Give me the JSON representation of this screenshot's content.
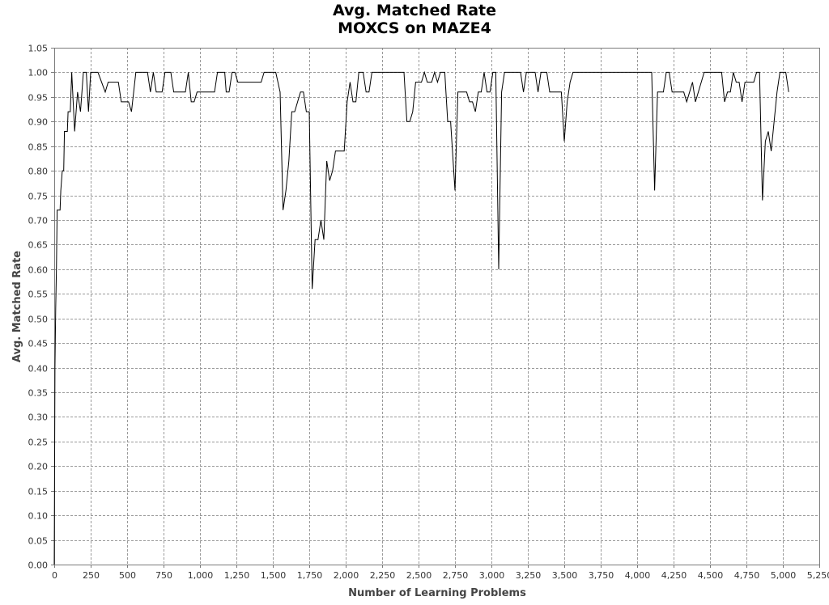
{
  "chart_data": {
    "type": "line",
    "title": "Avg. Matched Rate",
    "subtitle": "MOXCS on MAZE4",
    "xlabel": "Number of Learning Problems",
    "ylabel": "Avg. Matched Rate",
    "xlim": [
      0,
      5250
    ],
    "ylim": [
      0,
      1.05
    ],
    "grid": true,
    "x_ticks": [
      "0",
      "250",
      "500",
      "750",
      "1,000",
      "1,250",
      "1,500",
      "1,750",
      "2,000",
      "2,250",
      "2,500",
      "2,750",
      "3,000",
      "3,250",
      "3,500",
      "3,750",
      "4,000",
      "4,250",
      "4,500",
      "4,750",
      "5,000",
      "5,250"
    ],
    "y_ticks": [
      "0.00",
      "0.05",
      "0.10",
      "0.15",
      "0.20",
      "0.25",
      "0.30",
      "0.35",
      "0.40",
      "0.45",
      "0.50",
      "0.55",
      "0.60",
      "0.65",
      "0.70",
      "0.75",
      "0.80",
      "0.85",
      "0.90",
      "0.95",
      "1.00",
      "1.05"
    ],
    "series": [
      {
        "color": "#000000",
        "points": [
          [
            0,
            0.0
          ],
          [
            5,
            0.4
          ],
          [
            10,
            0.52
          ],
          [
            15,
            0.6
          ],
          [
            20,
            0.72
          ],
          [
            40,
            0.72
          ],
          [
            45,
            0.76
          ],
          [
            55,
            0.8
          ],
          [
            65,
            0.8
          ],
          [
            70,
            0.88
          ],
          [
            90,
            0.88
          ],
          [
            95,
            0.92
          ],
          [
            110,
            0.92
          ],
          [
            120,
            1.0
          ],
          [
            140,
            0.88
          ],
          [
            160,
            0.96
          ],
          [
            180,
            0.92
          ],
          [
            200,
            1.0
          ],
          [
            220,
            1.0
          ],
          [
            235,
            0.92
          ],
          [
            250,
            1.0
          ],
          [
            300,
            1.0
          ],
          [
            350,
            0.96
          ],
          [
            370,
            0.98
          ],
          [
            440,
            0.98
          ],
          [
            460,
            0.94
          ],
          [
            510,
            0.94
          ],
          [
            530,
            0.92
          ],
          [
            560,
            1.0
          ],
          [
            640,
            1.0
          ],
          [
            660,
            0.96
          ],
          [
            680,
            1.0
          ],
          [
            700,
            0.96
          ],
          [
            740,
            0.96
          ],
          [
            760,
            1.0
          ],
          [
            800,
            1.0
          ],
          [
            820,
            0.96
          ],
          [
            900,
            0.96
          ],
          [
            920,
            1.0
          ],
          [
            940,
            0.94
          ],
          [
            960,
            0.94
          ],
          [
            980,
            0.96
          ],
          [
            1100,
            0.96
          ],
          [
            1120,
            1.0
          ],
          [
            1170,
            1.0
          ],
          [
            1180,
            0.96
          ],
          [
            1200,
            0.96
          ],
          [
            1220,
            1.0
          ],
          [
            1240,
            1.0
          ],
          [
            1260,
            0.98
          ],
          [
            1420,
            0.98
          ],
          [
            1440,
            1.0
          ],
          [
            1520,
            1.0
          ],
          [
            1550,
            0.96
          ],
          [
            1570,
            0.72
          ],
          [
            1590,
            0.76
          ],
          [
            1610,
            0.82
          ],
          [
            1630,
            0.92
          ],
          [
            1650,
            0.92
          ],
          [
            1670,
            0.94
          ],
          [
            1690,
            0.96
          ],
          [
            1710,
            0.96
          ],
          [
            1730,
            0.92
          ],
          [
            1750,
            0.92
          ],
          [
            1770,
            0.56
          ],
          [
            1790,
            0.66
          ],
          [
            1810,
            0.66
          ],
          [
            1830,
            0.7
          ],
          [
            1850,
            0.66
          ],
          [
            1870,
            0.82
          ],
          [
            1890,
            0.78
          ],
          [
            1910,
            0.8
          ],
          [
            1930,
            0.84
          ],
          [
            1990,
            0.84
          ],
          [
            2010,
            0.94
          ],
          [
            2030,
            0.98
          ],
          [
            2050,
            0.94
          ],
          [
            2070,
            0.94
          ],
          [
            2090,
            1.0
          ],
          [
            2120,
            1.0
          ],
          [
            2140,
            0.96
          ],
          [
            2160,
            0.96
          ],
          [
            2180,
            1.0
          ],
          [
            2400,
            1.0
          ],
          [
            2420,
            0.9
          ],
          [
            2440,
            0.9
          ],
          [
            2460,
            0.92
          ],
          [
            2480,
            0.98
          ],
          [
            2520,
            0.98
          ],
          [
            2540,
            1.0
          ],
          [
            2560,
            0.98
          ],
          [
            2590,
            0.98
          ],
          [
            2610,
            1.0
          ],
          [
            2630,
            0.98
          ],
          [
            2650,
            1.0
          ],
          [
            2680,
            1.0
          ],
          [
            2700,
            0.9
          ],
          [
            2720,
            0.9
          ],
          [
            2750,
            0.76
          ],
          [
            2770,
            0.96
          ],
          [
            2830,
            0.96
          ],
          [
            2850,
            0.94
          ],
          [
            2870,
            0.94
          ],
          [
            2890,
            0.92
          ],
          [
            2910,
            0.96
          ],
          [
            2930,
            0.96
          ],
          [
            2950,
            1.0
          ],
          [
            2970,
            0.96
          ],
          [
            2990,
            0.96
          ],
          [
            3010,
            1.0
          ],
          [
            3030,
            1.0
          ],
          [
            3050,
            0.6
          ],
          [
            3070,
            0.96
          ],
          [
            3090,
            1.0
          ],
          [
            3200,
            1.0
          ],
          [
            3220,
            0.96
          ],
          [
            3240,
            1.0
          ],
          [
            3300,
            1.0
          ],
          [
            3320,
            0.96
          ],
          [
            3340,
            1.0
          ],
          [
            3380,
            1.0
          ],
          [
            3400,
            0.96
          ],
          [
            3480,
            0.96
          ],
          [
            3500,
            0.86
          ],
          [
            3520,
            0.94
          ],
          [
            3540,
            0.98
          ],
          [
            3560,
            1.0
          ],
          [
            4100,
            1.0
          ],
          [
            4120,
            0.76
          ],
          [
            4140,
            0.96
          ],
          [
            4180,
            0.96
          ],
          [
            4200,
            1.0
          ],
          [
            4220,
            1.0
          ],
          [
            4240,
            0.96
          ],
          [
            4320,
            0.96
          ],
          [
            4340,
            0.94
          ],
          [
            4360,
            0.96
          ],
          [
            4380,
            0.98
          ],
          [
            4400,
            0.94
          ],
          [
            4420,
            0.96
          ],
          [
            4440,
            0.98
          ],
          [
            4460,
            1.0
          ],
          [
            4580,
            1.0
          ],
          [
            4600,
            0.94
          ],
          [
            4620,
            0.96
          ],
          [
            4640,
            0.96
          ],
          [
            4660,
            1.0
          ],
          [
            4680,
            0.98
          ],
          [
            4700,
            0.98
          ],
          [
            4720,
            0.94
          ],
          [
            4740,
            0.98
          ],
          [
            4800,
            0.98
          ],
          [
            4820,
            1.0
          ],
          [
            4840,
            1.0
          ],
          [
            4860,
            0.74
          ],
          [
            4880,
            0.86
          ],
          [
            4900,
            0.88
          ],
          [
            4920,
            0.84
          ],
          [
            4940,
            0.9
          ],
          [
            4960,
            0.96
          ],
          [
            4980,
            1.0
          ],
          [
            5020,
            1.0
          ],
          [
            5040,
            0.96
          ]
        ]
      }
    ]
  }
}
